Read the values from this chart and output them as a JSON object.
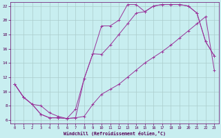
{
  "xlabel": "Windchill (Refroidissement éolien,°C)",
  "background_color": "#c8eef0",
  "line_color": "#993399",
  "grid_color": "#aacccc",
  "xlim": [
    -0.5,
    23.5
  ],
  "ylim": [
    5.5,
    22.5
  ],
  "xticks": [
    0,
    1,
    2,
    3,
    4,
    5,
    6,
    7,
    8,
    9,
    10,
    11,
    12,
    13,
    14,
    15,
    16,
    17,
    18,
    19,
    20,
    21,
    22,
    23
  ],
  "yticks": [
    6,
    8,
    10,
    12,
    14,
    16,
    18,
    20,
    22
  ],
  "curve1_x": [
    0,
    1,
    2,
    3,
    4,
    5,
    6,
    7,
    8,
    9,
    10,
    11,
    12,
    13,
    14,
    15,
    16,
    17,
    18,
    19,
    20,
    21,
    22,
    23
  ],
  "curve1_y": [
    11.0,
    9.2,
    8.2,
    6.8,
    6.3,
    6.3,
    6.2,
    6.3,
    6.5,
    8.2,
    9.6,
    10.3,
    11.0,
    12.0,
    13.0,
    14.0,
    14.8,
    15.6,
    16.5,
    17.5,
    18.5,
    19.5,
    20.5,
    13.0
  ],
  "curve2_x": [
    0,
    1,
    2,
    3,
    4,
    5,
    6,
    7,
    8,
    9,
    10,
    11,
    12,
    13,
    14,
    15,
    16,
    17,
    18,
    19,
    20,
    21,
    22,
    23
  ],
  "curve2_y": [
    11.0,
    9.2,
    8.2,
    6.8,
    6.3,
    6.3,
    6.2,
    6.3,
    11.8,
    15.3,
    19.2,
    19.2,
    20.0,
    22.2,
    22.2,
    21.2,
    22.0,
    22.2,
    22.2,
    22.2,
    22.0,
    21.0,
    17.0,
    15.0
  ],
  "curve3_x": [
    0,
    1,
    2,
    3,
    4,
    5,
    6,
    7,
    8,
    9,
    10,
    11,
    12,
    13,
    14,
    15,
    16,
    17,
    18,
    19,
    20,
    21,
    22,
    23
  ],
  "curve3_y": [
    11.0,
    9.2,
    8.2,
    8.0,
    7.0,
    6.5,
    6.2,
    7.5,
    11.8,
    15.3,
    15.2,
    16.5,
    18.0,
    19.5,
    21.0,
    21.2,
    22.0,
    22.2,
    22.2,
    22.2,
    22.0,
    21.0,
    17.0,
    15.0
  ]
}
